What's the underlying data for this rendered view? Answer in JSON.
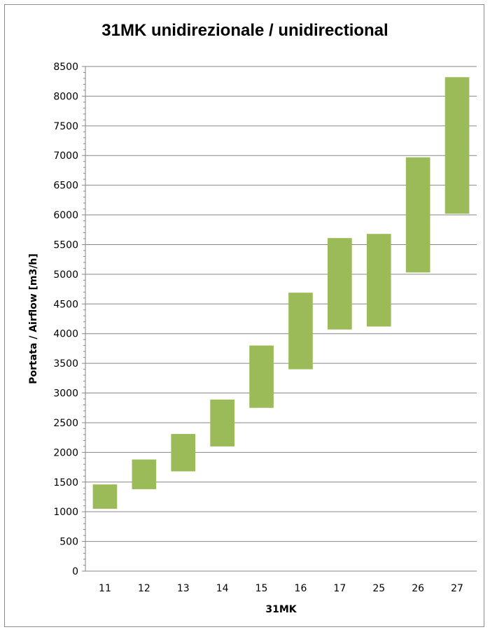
{
  "chart_data": {
    "type": "bar",
    "title": "31MK unidirezionale / unidirectional",
    "xlabel": "31MK",
    "ylabel": "Portata / Airflow  [m3/h]",
    "categories": [
      "11",
      "12",
      "13",
      "14",
      "15",
      "16",
      "17",
      "25",
      "26",
      "27"
    ],
    "series": [
      {
        "low": [
          1050,
          1380,
          1680,
          2100,
          2750,
          3400,
          4070,
          4120,
          5030,
          6020
        ],
        "high": [
          1460,
          1880,
          2310,
          2890,
          3800,
          4690,
          5610,
          5680,
          6970,
          8320
        ]
      }
    ],
    "ylim": [
      0,
      8500
    ],
    "yticks": [
      "0",
      "500",
      "1000",
      "1500",
      "2000",
      "2500",
      "3000",
      "3500",
      "4000",
      "4500",
      "5000",
      "5500",
      "6000",
      "6500",
      "7000",
      "7500",
      "8000",
      "8500"
    ],
    "bar_color": "#9bbb59",
    "grid": true,
    "legend": "none"
  }
}
